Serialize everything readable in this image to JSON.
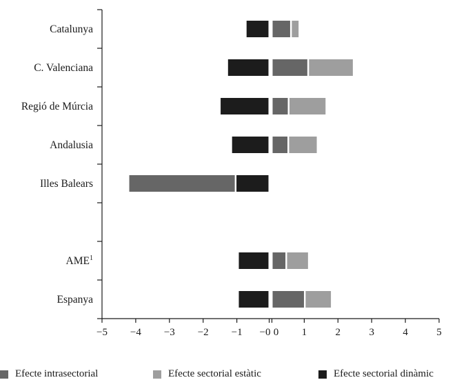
{
  "chart_data": {
    "type": "bar",
    "orientation": "horizontal",
    "stacked": "diverging",
    "categories": [
      "Catalunya",
      "C. Valenciana",
      "Regió de Múrcia",
      "Andalusia",
      "Illes Balears",
      "",
      "AME",
      "Espanya"
    ],
    "category_superscripts": {
      "AME": "1"
    },
    "series": [
      {
        "name": "Efecte sectorial dinàmic",
        "color": "#1c1c1c",
        "values": [
          -0.65,
          -1.2,
          -1.42,
          -1.08,
          -0.95,
          null,
          -0.88,
          -0.88
        ]
      },
      {
        "name": "Efecte intrasectorial",
        "color": "#666666",
        "values": [
          0.52,
          1.03,
          0.45,
          0.44,
          -3.13,
          null,
          0.38,
          0.93
        ]
      },
      {
        "name": "Efecte sectorial estàtic",
        "color": "#9e9e9e",
        "values": [
          0.2,
          1.3,
          1.07,
          0.82,
          0,
          null,
          0.62,
          0.75
        ]
      }
    ],
    "xlim": [
      -5,
      5
    ],
    "x_ticks": [
      "−5",
      "−4",
      "−3",
      "−2",
      "−1",
      "−0",
      "0",
      "1",
      "2",
      "3",
      "4",
      "5"
    ],
    "legend_position": "bottom",
    "xlabel": "",
    "ylabel": ""
  }
}
